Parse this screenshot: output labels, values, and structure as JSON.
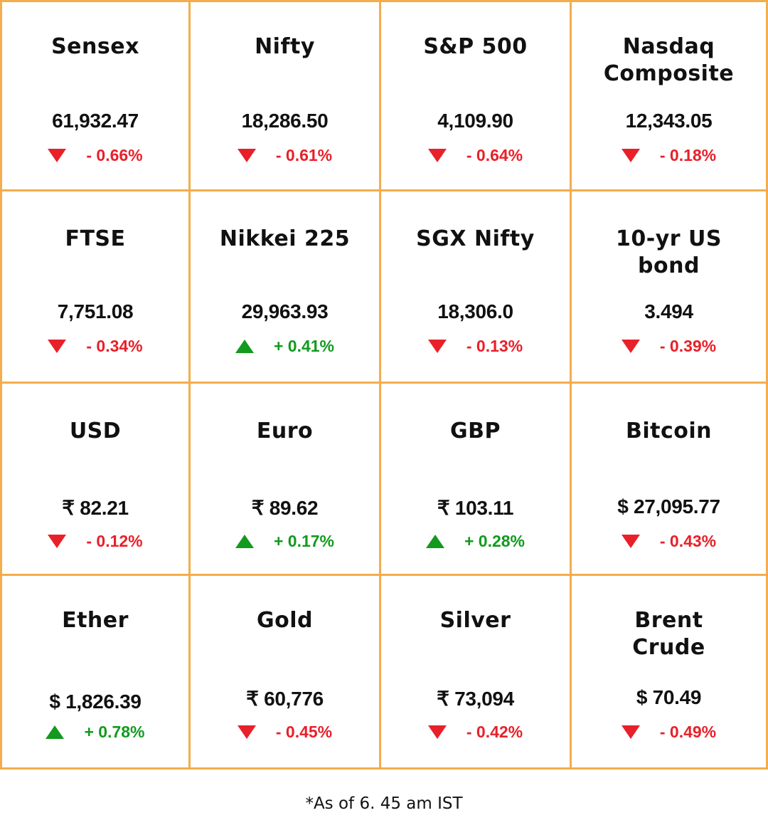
{
  "cells": [
    {
      "name": "Sensex",
      "value": "61,932.47",
      "change": "- 0.66%",
      "dir": "down"
    },
    {
      "name": "Nifty",
      "value": "18,286.50",
      "change": "- 0.61%",
      "dir": "down"
    },
    {
      "name": "S&P 500",
      "value": "4,109.90",
      "change": "- 0.64%",
      "dir": "down"
    },
    {
      "name": "Nasdaq\nComposite",
      "value": "12,343.05",
      "change": "- 0.18%",
      "dir": "down"
    },
    {
      "name": "FTSE",
      "value": "7,751.08",
      "change": "- 0.34%",
      "dir": "down"
    },
    {
      "name": "Nikkei 225",
      "value": "29,963.93",
      "change": "+ 0.41%",
      "dir": "up"
    },
    {
      "name": "SGX Nifty",
      "value": "18,306.0",
      "change": "- 0.13%",
      "dir": "down"
    },
    {
      "name": "10-yr US\nbond",
      "value": "3.494",
      "change": "- 0.39%",
      "dir": "down"
    },
    {
      "name": "USD",
      "value": "₹ 82.21",
      "change": "- 0.12%",
      "dir": "down"
    },
    {
      "name": "Euro",
      "value": "₹ 89.62",
      "change": "+ 0.17%",
      "dir": "up"
    },
    {
      "name": "GBP",
      "value": "₹ 103.11",
      "change": "+ 0.28%",
      "dir": "up"
    },
    {
      "name": "Bitcoin",
      "value": "$ 27,095.77",
      "change": "- 0.43%",
      "dir": "down"
    },
    {
      "name": "Ether",
      "value": "$ 1,826.39",
      "change": "+ 0.78%",
      "dir": "up"
    },
    {
      "name": "Gold",
      "value": "₹ 60,776",
      "change": "- 0.45%",
      "dir": "down"
    },
    {
      "name": "Silver",
      "value": "₹ 73,094",
      "change": "- 0.42%",
      "dir": "down"
    },
    {
      "name": "Brent\nCrude",
      "value": "$ 70.49",
      "change": "- 0.49%",
      "dir": "down"
    }
  ],
  "footnote": "*As of 6. 45 am IST",
  "colors": {
    "border": "#f3ad4c",
    "down": "#e8202a",
    "up": "#129a1e",
    "text": "#111111"
  },
  "icons": {
    "down": "red-down-triangle-icon",
    "up": "green-up-triangle-icon"
  }
}
